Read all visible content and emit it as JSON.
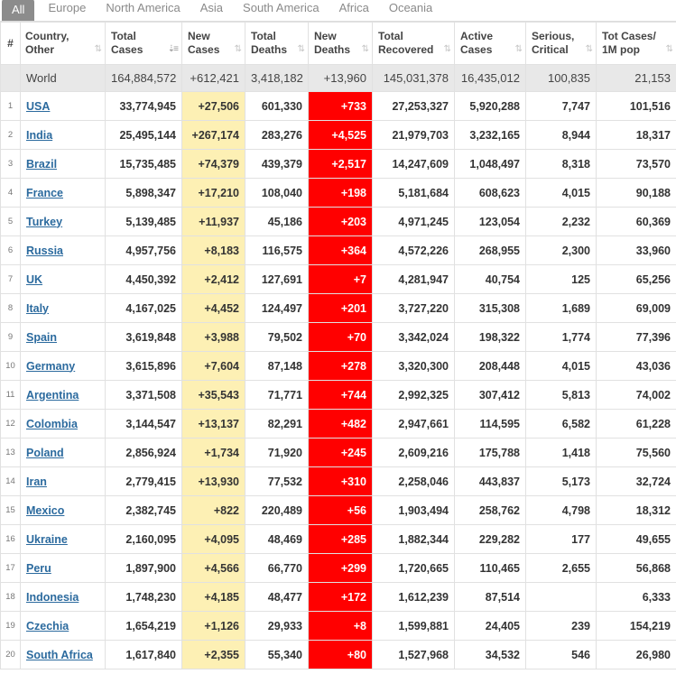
{
  "tabs": [
    {
      "label": "All",
      "active": true
    },
    {
      "label": "Europe",
      "active": false
    },
    {
      "label": "North America",
      "active": false
    },
    {
      "label": "Asia",
      "active": false
    },
    {
      "label": "South America",
      "active": false
    },
    {
      "label": "Africa",
      "active": false
    },
    {
      "label": "Oceania",
      "active": false
    }
  ],
  "columns": [
    {
      "l1": "#",
      "l2": ""
    },
    {
      "l1": "Country,",
      "l2": "Other"
    },
    {
      "l1": "Total",
      "l2": "Cases"
    },
    {
      "l1": "New",
      "l2": "Cases"
    },
    {
      "l1": "Total",
      "l2": "Deaths"
    },
    {
      "l1": "New",
      "l2": "Deaths"
    },
    {
      "l1": "Total",
      "l2": "Recovered"
    },
    {
      "l1": "Active",
      "l2": "Cases"
    },
    {
      "l1": "Serious,",
      "l2": "Critical"
    },
    {
      "l1": "Tot Cases/",
      "l2": "1M pop"
    }
  ],
  "world": {
    "country": "World",
    "total_cases": "164,884,572",
    "new_cases": "+612,421",
    "total_deaths": "3,418,182",
    "new_deaths": "+13,960",
    "total_recovered": "145,031,378",
    "active_cases": "16,435,012",
    "serious": "100,835",
    "per_million": "21,153"
  },
  "rows": [
    {
      "rank": "1",
      "country": "USA",
      "total_cases": "33,774,945",
      "new_cases": "+27,506",
      "total_deaths": "601,330",
      "new_deaths": "+733",
      "total_recovered": "27,253,327",
      "active_cases": "5,920,288",
      "serious": "7,747",
      "per_million": "101,516"
    },
    {
      "rank": "2",
      "country": "India",
      "total_cases": "25,495,144",
      "new_cases": "+267,174",
      "total_deaths": "283,276",
      "new_deaths": "+4,525",
      "total_recovered": "21,979,703",
      "active_cases": "3,232,165",
      "serious": "8,944",
      "per_million": "18,317"
    },
    {
      "rank": "3",
      "country": "Brazil",
      "total_cases": "15,735,485",
      "new_cases": "+74,379",
      "total_deaths": "439,379",
      "new_deaths": "+2,517",
      "total_recovered": "14,247,609",
      "active_cases": "1,048,497",
      "serious": "8,318",
      "per_million": "73,570"
    },
    {
      "rank": "4",
      "country": "France",
      "total_cases": "5,898,347",
      "new_cases": "+17,210",
      "total_deaths": "108,040",
      "new_deaths": "+198",
      "total_recovered": "5,181,684",
      "active_cases": "608,623",
      "serious": "4,015",
      "per_million": "90,188"
    },
    {
      "rank": "5",
      "country": "Turkey",
      "total_cases": "5,139,485",
      "new_cases": "+11,937",
      "total_deaths": "45,186",
      "new_deaths": "+203",
      "total_recovered": "4,971,245",
      "active_cases": "123,054",
      "serious": "2,232",
      "per_million": "60,369"
    },
    {
      "rank": "6",
      "country": "Russia",
      "total_cases": "4,957,756",
      "new_cases": "+8,183",
      "total_deaths": "116,575",
      "new_deaths": "+364",
      "total_recovered": "4,572,226",
      "active_cases": "268,955",
      "serious": "2,300",
      "per_million": "33,960"
    },
    {
      "rank": "7",
      "country": "UK",
      "total_cases": "4,450,392",
      "new_cases": "+2,412",
      "total_deaths": "127,691",
      "new_deaths": "+7",
      "total_recovered": "4,281,947",
      "active_cases": "40,754",
      "serious": "125",
      "per_million": "65,256"
    },
    {
      "rank": "8",
      "country": "Italy",
      "total_cases": "4,167,025",
      "new_cases": "+4,452",
      "total_deaths": "124,497",
      "new_deaths": "+201",
      "total_recovered": "3,727,220",
      "active_cases": "315,308",
      "serious": "1,689",
      "per_million": "69,009"
    },
    {
      "rank": "9",
      "country": "Spain",
      "total_cases": "3,619,848",
      "new_cases": "+3,988",
      "total_deaths": "79,502",
      "new_deaths": "+70",
      "total_recovered": "3,342,024",
      "active_cases": "198,322",
      "serious": "1,774",
      "per_million": "77,396"
    },
    {
      "rank": "10",
      "country": "Germany",
      "total_cases": "3,615,896",
      "new_cases": "+7,604",
      "total_deaths": "87,148",
      "new_deaths": "+278",
      "total_recovered": "3,320,300",
      "active_cases": "208,448",
      "serious": "4,015",
      "per_million": "43,036"
    },
    {
      "rank": "11",
      "country": "Argentina",
      "total_cases": "3,371,508",
      "new_cases": "+35,543",
      "total_deaths": "71,771",
      "new_deaths": "+744",
      "total_recovered": "2,992,325",
      "active_cases": "307,412",
      "serious": "5,813",
      "per_million": "74,002"
    },
    {
      "rank": "12",
      "country": "Colombia",
      "total_cases": "3,144,547",
      "new_cases": "+13,137",
      "total_deaths": "82,291",
      "new_deaths": "+482",
      "total_recovered": "2,947,661",
      "active_cases": "114,595",
      "serious": "6,582",
      "per_million": "61,228"
    },
    {
      "rank": "13",
      "country": "Poland",
      "total_cases": "2,856,924",
      "new_cases": "+1,734",
      "total_deaths": "71,920",
      "new_deaths": "+245",
      "total_recovered": "2,609,216",
      "active_cases": "175,788",
      "serious": "1,418",
      "per_million": "75,560"
    },
    {
      "rank": "14",
      "country": "Iran",
      "total_cases": "2,779,415",
      "new_cases": "+13,930",
      "total_deaths": "77,532",
      "new_deaths": "+310",
      "total_recovered": "2,258,046",
      "active_cases": "443,837",
      "serious": "5,173",
      "per_million": "32,724"
    },
    {
      "rank": "15",
      "country": "Mexico",
      "total_cases": "2,382,745",
      "new_cases": "+822",
      "total_deaths": "220,489",
      "new_deaths": "+56",
      "total_recovered": "1,903,494",
      "active_cases": "258,762",
      "serious": "4,798",
      "per_million": "18,312"
    },
    {
      "rank": "16",
      "country": "Ukraine",
      "total_cases": "2,160,095",
      "new_cases": "+4,095",
      "total_deaths": "48,469",
      "new_deaths": "+285",
      "total_recovered": "1,882,344",
      "active_cases": "229,282",
      "serious": "177",
      "per_million": "49,655"
    },
    {
      "rank": "17",
      "country": "Peru",
      "total_cases": "1,897,900",
      "new_cases": "+4,566",
      "total_deaths": "66,770",
      "new_deaths": "+299",
      "total_recovered": "1,720,665",
      "active_cases": "110,465",
      "serious": "2,655",
      "per_million": "56,868"
    },
    {
      "rank": "18",
      "country": "Indonesia",
      "total_cases": "1,748,230",
      "new_cases": "+4,185",
      "total_deaths": "48,477",
      "new_deaths": "+172",
      "total_recovered": "1,612,239",
      "active_cases": "87,514",
      "serious": "",
      "per_million": "6,333"
    },
    {
      "rank": "19",
      "country": "Czechia",
      "total_cases": "1,654,219",
      "new_cases": "+1,126",
      "total_deaths": "29,933",
      "new_deaths": "+8",
      "total_recovered": "1,599,881",
      "active_cases": "24,405",
      "serious": "239",
      "per_million": "154,219"
    },
    {
      "rank": "20",
      "country": "South Africa",
      "total_cases": "1,617,840",
      "new_cases": "+2,355",
      "total_deaths": "55,340",
      "new_deaths": "+80",
      "total_recovered": "1,527,968",
      "active_cases": "34,532",
      "serious": "546",
      "per_million": "26,980"
    }
  ],
  "icons": {
    "sort": "sort-arrows-icon",
    "sort_active": "sort-desc-icon"
  },
  "colors": {
    "new_cases_bg": "#fdf0b4",
    "new_deaths_bg": "#ff0000",
    "link": "#2b6a9e",
    "active_tab": "#8c8c8c",
    "world_row": "#e8e8e8"
  }
}
